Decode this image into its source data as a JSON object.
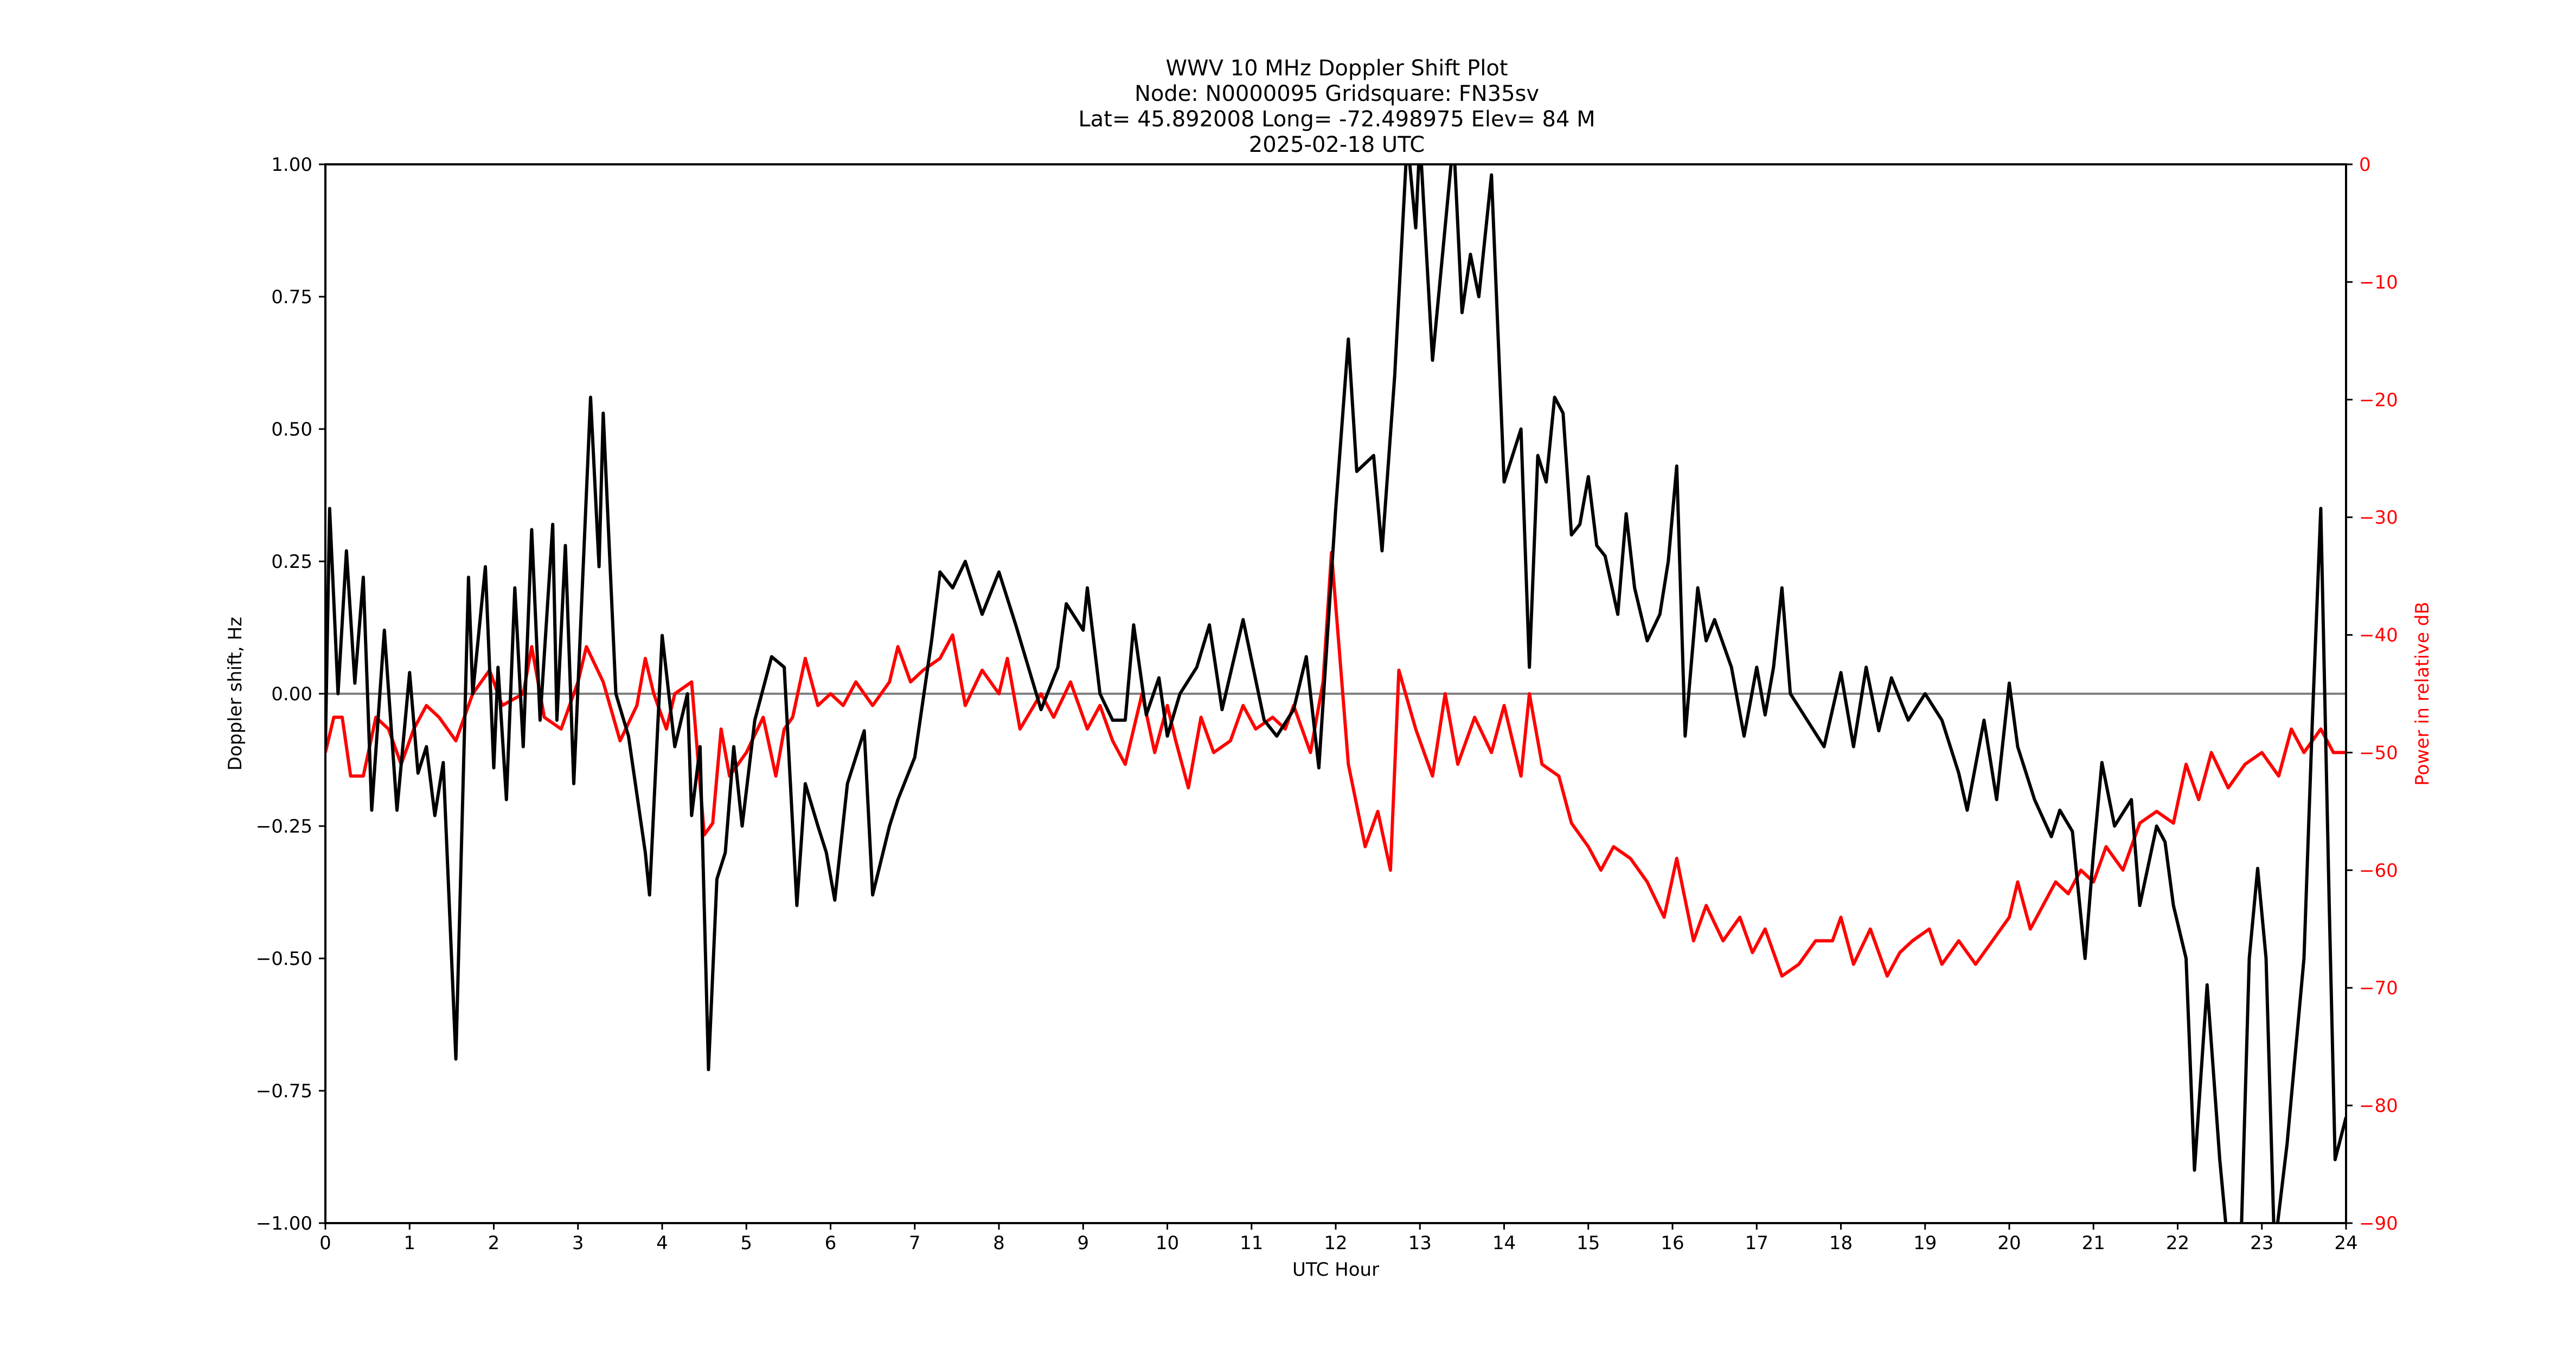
{
  "chart_data": {
    "type": "line",
    "title": "WWV 10 MHz Doppler Shift Plot",
    "subtitle_lines": [
      "Node:  N0000095     Gridsquare:  FN35sv",
      "Lat= 45.892008    Long= -72.498975    Elev= 84 M",
      "2025-02-18  UTC"
    ],
    "xlabel": "UTC Hour",
    "ylabel": "Doppler shift, Hz",
    "ylabel_right": "Power in relative dB",
    "xlim": [
      0,
      24
    ],
    "ylim": [
      -1.0,
      1.0
    ],
    "ylim_right": [
      -90,
      0
    ],
    "x_ticks": [
      "0",
      "1",
      "2",
      "3",
      "4",
      "5",
      "6",
      "7",
      "8",
      "9",
      "10",
      "11",
      "12",
      "13",
      "14",
      "15",
      "16",
      "17",
      "18",
      "19",
      "20",
      "21",
      "22",
      "23",
      "24"
    ],
    "y_ticks": [
      "1.00",
      "0.75",
      "0.50",
      "0.25",
      "0.00",
      "−0.25",
      "−0.50",
      "−0.75",
      "−1.00"
    ],
    "y_ticks_right": [
      "0",
      "−10",
      "−20",
      "−30",
      "−40",
      "−50",
      "−60",
      "−70",
      "−80",
      "−90"
    ],
    "grid": false,
    "zero_line": {
      "y": 0.0,
      "color": "#808080"
    },
    "series": [
      {
        "name": "Doppler shift",
        "axis": "left",
        "color": "#000000",
        "x": [
          0.0,
          0.05,
          0.15,
          0.25,
          0.35,
          0.45,
          0.55,
          0.7,
          0.85,
          1.0,
          1.1,
          1.2,
          1.3,
          1.4,
          1.55,
          1.7,
          1.75,
          1.9,
          2.0,
          2.05,
          2.15,
          2.25,
          2.35,
          2.45,
          2.55,
          2.7,
          2.75,
          2.85,
          2.95,
          3.15,
          3.25,
          3.3,
          3.45,
          3.6,
          3.8,
          3.85,
          4.0,
          4.15,
          4.3,
          4.35,
          4.45,
          4.55,
          4.65,
          4.75,
          4.85,
          4.95,
          5.1,
          5.3,
          5.45,
          5.6,
          5.7,
          5.85,
          5.95,
          6.05,
          6.2,
          6.4,
          6.5,
          6.7,
          6.8,
          7.0,
          7.2,
          7.3,
          7.45,
          7.6,
          7.8,
          8.0,
          8.2,
          8.35,
          8.5,
          8.7,
          8.8,
          9.0,
          9.05,
          9.2,
          9.35,
          9.5,
          9.6,
          9.75,
          9.9,
          10.0,
          10.15,
          10.35,
          10.5,
          10.65,
          10.9,
          11.15,
          11.3,
          11.5,
          11.65,
          11.8,
          12.0,
          12.15,
          12.25,
          12.45,
          12.55,
          12.7,
          12.85,
          12.95,
          13.0,
          13.15,
          13.4,
          13.5,
          13.6,
          13.7,
          13.85,
          14.0,
          14.2,
          14.3,
          14.4,
          14.5,
          14.6,
          14.7,
          14.8,
          14.9,
          15.0,
          15.1,
          15.2,
          15.35,
          15.45,
          15.55,
          15.7,
          15.85,
          15.95,
          16.05,
          16.15,
          16.3,
          16.4,
          16.5,
          16.7,
          16.85,
          17.0,
          17.1,
          17.2,
          17.3,
          17.4,
          17.6,
          17.8,
          18.0,
          18.15,
          18.3,
          18.45,
          18.6,
          18.8,
          19.0,
          19.2,
          19.4,
          19.5,
          19.7,
          19.85,
          20.0,
          20.1,
          20.3,
          20.5,
          20.6,
          20.75,
          20.9,
          21.0,
          21.1,
          21.25,
          21.45,
          21.55,
          21.75,
          21.85,
          21.95,
          22.1,
          22.2,
          22.35,
          22.5,
          22.6,
          22.75,
          22.85,
          22.95,
          23.05,
          23.15,
          23.3,
          23.5,
          23.6,
          23.7,
          23.8,
          23.87,
          24.0
        ],
        "values": [
          -0.1,
          0.35,
          0.0,
          0.27,
          0.02,
          0.22,
          -0.22,
          0.12,
          -0.22,
          0.04,
          -0.15,
          -0.1,
          -0.23,
          -0.13,
          -0.69,
          0.22,
          0.0,
          0.24,
          -0.14,
          0.05,
          -0.2,
          0.2,
          -0.1,
          0.31,
          -0.05,
          0.32,
          -0.05,
          0.28,
          -0.17,
          0.56,
          0.24,
          0.53,
          0.0,
          -0.08,
          -0.3,
          -0.38,
          0.11,
          -0.1,
          0.0,
          -0.23,
          -0.1,
          -0.71,
          -0.35,
          -0.3,
          -0.1,
          -0.25,
          -0.05,
          0.07,
          0.05,
          -0.4,
          -0.17,
          -0.25,
          -0.3,
          -0.39,
          -0.17,
          -0.07,
          -0.38,
          -0.25,
          -0.2,
          -0.12,
          0.1,
          0.23,
          0.2,
          0.25,
          0.15,
          0.23,
          0.13,
          0.05,
          -0.03,
          0.05,
          0.17,
          0.12,
          0.2,
          0.0,
          -0.05,
          -0.05,
          0.13,
          -0.04,
          0.03,
          -0.08,
          0.0,
          0.05,
          0.13,
          -0.03,
          0.14,
          -0.05,
          -0.08,
          -0.03,
          0.07,
          -0.14,
          0.35,
          0.67,
          0.42,
          0.45,
          0.27,
          0.6,
          1.05,
          0.88,
          1.05,
          0.63,
          1.05,
          0.72,
          0.83,
          0.75,
          0.98,
          0.4,
          0.5,
          0.05,
          0.45,
          0.4,
          0.56,
          0.53,
          0.3,
          0.32,
          0.41,
          0.28,
          0.26,
          0.15,
          0.34,
          0.2,
          0.1,
          0.15,
          0.25,
          0.43,
          -0.08,
          0.2,
          0.1,
          0.14,
          0.05,
          -0.08,
          0.05,
          -0.04,
          0.05,
          0.2,
          0.0,
          -0.05,
          -0.1,
          0.04,
          -0.1,
          0.05,
          -0.07,
          0.03,
          -0.05,
          0.0,
          -0.05,
          -0.15,
          -0.22,
          -0.05,
          -0.2,
          0.02,
          -0.1,
          -0.2,
          -0.27,
          -0.22,
          -0.26,
          -0.5,
          -0.3,
          -0.13,
          -0.25,
          -0.2,
          -0.4,
          -0.25,
          -0.28,
          -0.4,
          -0.5,
          -0.9,
          -0.55,
          -0.88,
          -1.05,
          -1.05,
          -0.5,
          -0.33,
          -0.5,
          -1.05,
          -0.85,
          -0.5,
          -0.05,
          0.35,
          -0.4,
          -0.88,
          -0.8
        ]
      },
      {
        "name": "Power",
        "axis": "right",
        "color": "#ff0000",
        "x": [
          0,
          0.1,
          0.2,
          0.3,
          0.45,
          0.6,
          0.75,
          0.9,
          1.05,
          1.2,
          1.35,
          1.55,
          1.75,
          1.95,
          2.1,
          2.35,
          2.45,
          2.6,
          2.8,
          3.0,
          3.1,
          3.3,
          3.5,
          3.7,
          3.8,
          3.9,
          4.05,
          4.15,
          4.35,
          4.5,
          4.6,
          4.7,
          4.8,
          4.9,
          5.0,
          5.2,
          5.35,
          5.45,
          5.55,
          5.7,
          5.85,
          6.0,
          6.15,
          6.3,
          6.5,
          6.7,
          6.8,
          6.95,
          7.1,
          7.3,
          7.45,
          7.6,
          7.8,
          8.0,
          8.1,
          8.25,
          8.5,
          8.65,
          8.85,
          9.05,
          9.2,
          9.35,
          9.5,
          9.7,
          9.85,
          10.0,
          10.1,
          10.25,
          10.4,
          10.55,
          10.75,
          10.9,
          11.05,
          11.25,
          11.4,
          11.5,
          11.7,
          11.85,
          11.95,
          12.05,
          12.15,
          12.35,
          12.5,
          12.65,
          12.75,
          12.95,
          13.15,
          13.3,
          13.45,
          13.65,
          13.85,
          14.0,
          14.2,
          14.3,
          14.45,
          14.65,
          14.8,
          15.0,
          15.15,
          15.3,
          15.5,
          15.7,
          15.9,
          16.05,
          16.25,
          16.4,
          16.6,
          16.8,
          16.95,
          17.1,
          17.3,
          17.5,
          17.7,
          17.9,
          18.0,
          18.15,
          18.35,
          18.55,
          18.7,
          18.85,
          19.05,
          19.2,
          19.4,
          19.6,
          19.8,
          20.0,
          20.1,
          20.25,
          20.4,
          20.55,
          20.7,
          20.85,
          21.0,
          21.15,
          21.35,
          21.55,
          21.75,
          21.95,
          22.1,
          22.25,
          22.4,
          22.6,
          22.8,
          23.0,
          23.2,
          23.35,
          23.5,
          23.7,
          23.85,
          24.0
        ],
        "values": [
          -50,
          -47,
          -47,
          -52,
          -52,
          -47,
          -48,
          -51,
          -48,
          -46,
          -47,
          -49,
          -45,
          -43,
          -46,
          -45,
          -41,
          -47,
          -48,
          -44,
          -41,
          -44,
          -49,
          -46,
          -42,
          -45,
          -48,
          -45,
          -44,
          -57,
          -56,
          -48,
          -52,
          -51,
          -50,
          -47,
          -52,
          -48,
          -47,
          -42,
          -46,
          -45,
          -46,
          -44,
          -46,
          -44,
          -41,
          -44,
          -43,
          -42,
          -40,
          -46,
          -43,
          -45,
          -42,
          -48,
          -45,
          -47,
          -44,
          -48,
          -46,
          -49,
          -51,
          -45,
          -50,
          -46,
          -49,
          -53,
          -47,
          -50,
          -49,
          -46,
          -48,
          -47,
          -48,
          -46,
          -50,
          -44,
          -33,
          -42,
          -51,
          -58,
          -55,
          -60,
          -43,
          -48,
          -52,
          -45,
          -51,
          -47,
          -50,
          -46,
          -52,
          -45,
          -51,
          -52,
          -56,
          -58,
          -60,
          -58,
          -59,
          -61,
          -64,
          -59,
          -66,
          -63,
          -66,
          -64,
          -67,
          -65,
          -69,
          -68,
          -66,
          -66,
          -64,
          -68,
          -65,
          -69,
          -67,
          -66,
          -65,
          -68,
          -66,
          -68,
          -66,
          -64,
          -61,
          -65,
          -63,
          -61,
          -62,
          -60,
          -61,
          -58,
          -60,
          -56,
          -55,
          -56,
          -51,
          -54,
          -50,
          -53,
          -51,
          -50,
          -52,
          -48,
          -50,
          -48,
          -50,
          -50
        ]
      }
    ]
  }
}
